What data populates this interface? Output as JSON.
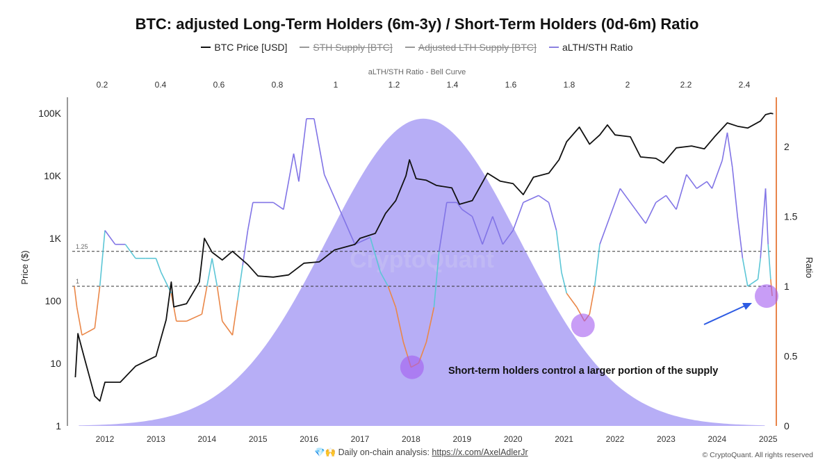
{
  "chart_data": {
    "type": "line",
    "title": "BTC: adjusted Long-Term Holders (6m-3y) / Short-Term Holders (0d-6m) Ratio",
    "legend": [
      {
        "name": "BTC Price [USD]",
        "color": "#111111",
        "enabled": true
      },
      {
        "name": "STH Supply [BTC]",
        "color": "#888888",
        "enabled": false
      },
      {
        "name": "Adjusted LTH Supply [BTC]",
        "color": "#888888",
        "enabled": false
      },
      {
        "name": "aLTH/STH Ratio",
        "color": "#8b80e0",
        "enabled": true
      }
    ],
    "legend_placement": "top",
    "x_axis": {
      "ticks": [
        "2012",
        "2013",
        "2014",
        "2015",
        "2016",
        "2017",
        "2018",
        "2019",
        "2020",
        "2021",
        "2022",
        "2023",
        "2024",
        "2025"
      ],
      "range": [
        2011.35,
        2025.2
      ]
    },
    "y_left": {
      "label": "Price ($)",
      "scale": "log",
      "ticks": [
        "1",
        "10",
        "100",
        "1K",
        "10K",
        "100K"
      ],
      "range": [
        1,
        150000
      ]
    },
    "y_right": {
      "label": "Ratio",
      "ticks": [
        "0",
        "0.5",
        "1",
        "1.5",
        "2"
      ],
      "range": [
        0,
        2.4
      ]
    },
    "top_axis": {
      "label": "aLTH/STH Ratio - Bell Curve",
      "ticks": [
        "0.2",
        "0.4",
        "0.6",
        "0.8",
        "1",
        "1.2",
        "1.4",
        "1.6",
        "1.8",
        "2",
        "2.2",
        "2.4"
      ]
    },
    "bell_curve": {
      "mean": 1.3,
      "std": 0.33,
      "peak_ratio_axis": 2.2,
      "color": "#b3aaf5"
    },
    "reference_lines": [
      {
        "value": 1.25,
        "label": "1.25"
      },
      {
        "value": 1,
        "label": "1"
      }
    ],
    "ratio_colors": {
      "above_1_25": "#8174e6",
      "between_1_and_1_25": "#5cc6d6",
      "below_1": "#ea8748"
    },
    "series": [
      {
        "name": "BTC Price [USD]",
        "axis": "left",
        "points": [
          [
            2011.42,
            6
          ],
          [
            2011.47,
            30
          ],
          [
            2011.6,
            12
          ],
          [
            2011.8,
            3
          ],
          [
            2011.9,
            2.5
          ],
          [
            2012.0,
            5
          ],
          [
            2012.3,
            5
          ],
          [
            2012.6,
            9
          ],
          [
            2013.0,
            13
          ],
          [
            2013.2,
            50
          ],
          [
            2013.3,
            200
          ],
          [
            2013.35,
            80
          ],
          [
            2013.6,
            90
          ],
          [
            2013.85,
            200
          ],
          [
            2013.95,
            1000
          ],
          [
            2014.1,
            600
          ],
          [
            2014.3,
            450
          ],
          [
            2014.5,
            620
          ],
          [
            2014.8,
            380
          ],
          [
            2015.0,
            250
          ],
          [
            2015.3,
            240
          ],
          [
            2015.6,
            260
          ],
          [
            2015.9,
            400
          ],
          [
            2016.2,
            420
          ],
          [
            2016.5,
            650
          ],
          [
            2016.9,
            800
          ],
          [
            2017.0,
            1000
          ],
          [
            2017.3,
            1200
          ],
          [
            2017.5,
            2500
          ],
          [
            2017.7,
            4000
          ],
          [
            2017.9,
            10000
          ],
          [
            2017.97,
            18000
          ],
          [
            2018.1,
            9000
          ],
          [
            2018.3,
            8500
          ],
          [
            2018.5,
            7000
          ],
          [
            2018.8,
            6400
          ],
          [
            2018.95,
            3500
          ],
          [
            2019.2,
            4000
          ],
          [
            2019.5,
            11000
          ],
          [
            2019.75,
            8200
          ],
          [
            2020.0,
            7500
          ],
          [
            2020.2,
            5000
          ],
          [
            2020.4,
            9500
          ],
          [
            2020.7,
            11000
          ],
          [
            2020.9,
            18000
          ],
          [
            2021.05,
            35000
          ],
          [
            2021.3,
            60000
          ],
          [
            2021.5,
            32000
          ],
          [
            2021.7,
            45000
          ],
          [
            2021.85,
            65000
          ],
          [
            2022.0,
            45000
          ],
          [
            2022.3,
            42000
          ],
          [
            2022.5,
            20000
          ],
          [
            2022.8,
            19000
          ],
          [
            2022.95,
            16000
          ],
          [
            2023.2,
            28000
          ],
          [
            2023.5,
            30000
          ],
          [
            2023.75,
            27000
          ],
          [
            2023.95,
            42000
          ],
          [
            2024.2,
            70000
          ],
          [
            2024.4,
            62000
          ],
          [
            2024.6,
            58000
          ],
          [
            2024.85,
            75000
          ],
          [
            2024.95,
            95000
          ],
          [
            2025.05,
            100000
          ],
          [
            2025.1,
            98000
          ]
        ]
      },
      {
        "name": "aLTH/STH Ratio",
        "axis": "right",
        "points": [
          [
            2011.4,
            1.0
          ],
          [
            2011.45,
            0.85
          ],
          [
            2011.55,
            0.65
          ],
          [
            2011.8,
            0.7
          ],
          [
            2011.9,
            1.0
          ],
          [
            2012.0,
            1.4
          ],
          [
            2012.2,
            1.3
          ],
          [
            2012.4,
            1.3
          ],
          [
            2012.6,
            1.2
          ],
          [
            2012.8,
            1.2
          ],
          [
            2013.0,
            1.2
          ],
          [
            2013.1,
            1.1
          ],
          [
            2013.3,
            0.95
          ],
          [
            2013.4,
            0.75
          ],
          [
            2013.6,
            0.75
          ],
          [
            2013.9,
            0.8
          ],
          [
            2014.0,
            1.0
          ],
          [
            2014.1,
            1.2
          ],
          [
            2014.2,
            1.0
          ],
          [
            2014.3,
            0.75
          ],
          [
            2014.5,
            0.65
          ],
          [
            2014.6,
            0.9
          ],
          [
            2014.7,
            1.15
          ],
          [
            2014.8,
            1.4
          ],
          [
            2014.9,
            1.6
          ],
          [
            2015.3,
            1.6
          ],
          [
            2015.5,
            1.55
          ],
          [
            2015.7,
            1.95
          ],
          [
            2015.8,
            1.75
          ],
          [
            2015.95,
            2.2
          ],
          [
            2016.1,
            2.2
          ],
          [
            2016.3,
            1.8
          ],
          [
            2016.6,
            1.55
          ],
          [
            2016.9,
            1.3
          ],
          [
            2017.2,
            1.35
          ],
          [
            2017.4,
            1.1
          ],
          [
            2017.55,
            1.0
          ],
          [
            2017.7,
            0.85
          ],
          [
            2017.85,
            0.6
          ],
          [
            2018.0,
            0.42
          ],
          [
            2018.15,
            0.45
          ],
          [
            2018.3,
            0.6
          ],
          [
            2018.45,
            0.85
          ],
          [
            2018.55,
            1.25
          ],
          [
            2018.7,
            1.6
          ],
          [
            2018.9,
            1.6
          ],
          [
            2019.0,
            1.55
          ],
          [
            2019.2,
            1.5
          ],
          [
            2019.4,
            1.3
          ],
          [
            2019.6,
            1.5
          ],
          [
            2019.8,
            1.3
          ],
          [
            2020.0,
            1.4
          ],
          [
            2020.2,
            1.6
          ],
          [
            2020.5,
            1.65
          ],
          [
            2020.7,
            1.6
          ],
          [
            2020.85,
            1.4
          ],
          [
            2020.95,
            1.1
          ],
          [
            2021.05,
            0.95
          ],
          [
            2021.25,
            0.85
          ],
          [
            2021.4,
            0.75
          ],
          [
            2021.5,
            0.8
          ],
          [
            2021.6,
            1.0
          ],
          [
            2021.7,
            1.3
          ],
          [
            2021.9,
            1.5
          ],
          [
            2022.1,
            1.7
          ],
          [
            2022.4,
            1.55
          ],
          [
            2022.6,
            1.45
          ],
          [
            2022.8,
            1.6
          ],
          [
            2023.0,
            1.65
          ],
          [
            2023.2,
            1.55
          ],
          [
            2023.4,
            1.8
          ],
          [
            2023.6,
            1.7
          ],
          [
            2023.8,
            1.75
          ],
          [
            2023.9,
            1.7
          ],
          [
            2024.1,
            1.9
          ],
          [
            2024.2,
            2.1
          ],
          [
            2024.3,
            1.85
          ],
          [
            2024.4,
            1.5
          ],
          [
            2024.5,
            1.2
          ],
          [
            2024.6,
            1.0
          ],
          [
            2024.8,
            1.05
          ],
          [
            2024.85,
            1.2
          ],
          [
            2024.95,
            1.7
          ],
          [
            2025.0,
            1.3
          ],
          [
            2025.05,
            1.05
          ],
          [
            2025.08,
            0.93
          ]
        ]
      }
    ],
    "highlights": [
      {
        "x": 2018.02,
        "ratio": 0.42
      },
      {
        "x": 2021.37,
        "ratio": 0.72
      },
      {
        "x": 2024.97,
        "ratio": 0.93
      }
    ],
    "annotation": "Short-term holders control a larger portion of the supply",
    "watermark": "CryptoQuant"
  },
  "footer": {
    "emoji": "💎🙌",
    "text": "Daily on-chain analysis:",
    "link": "https://x.com/AxelAdlerJr",
    "copyright": "© CryptoQuant. All rights reserved"
  }
}
